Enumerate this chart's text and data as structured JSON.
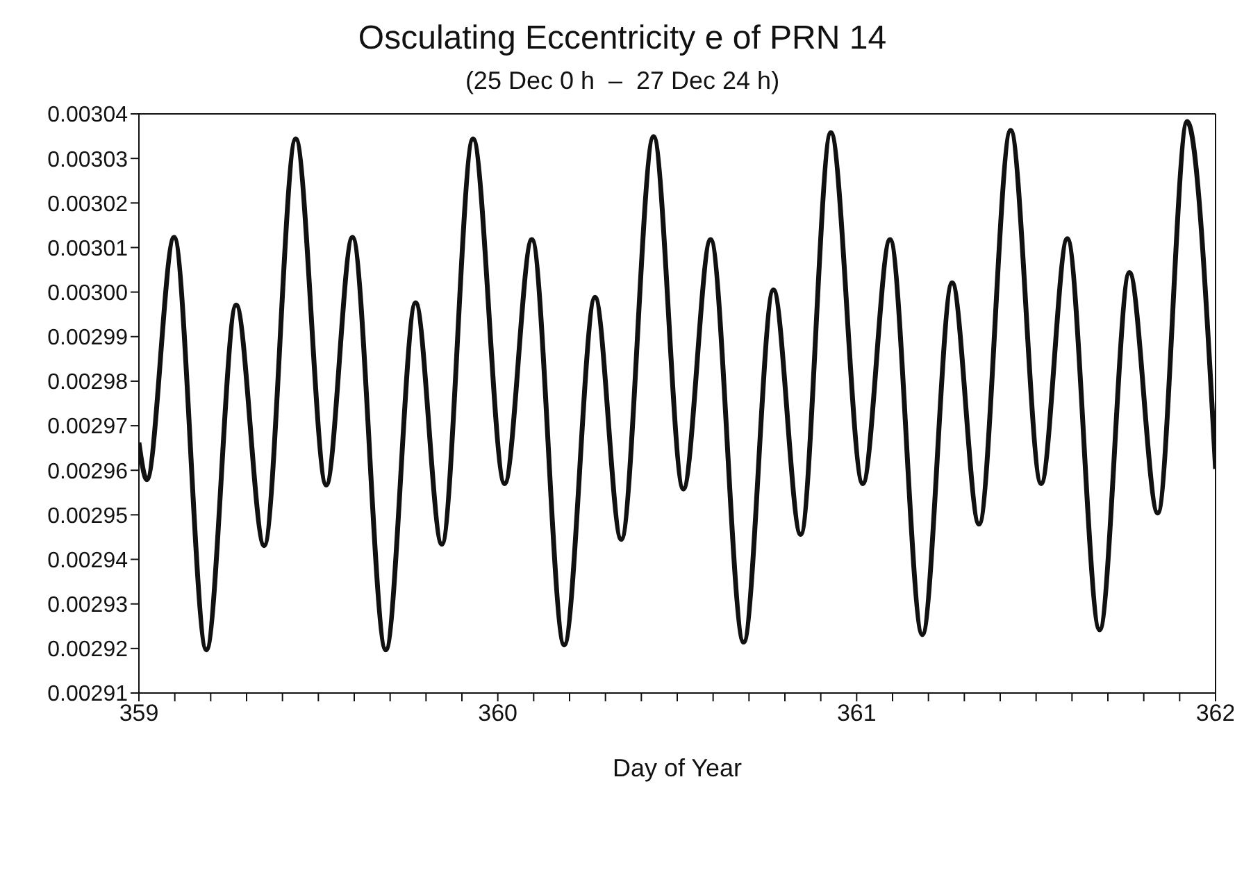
{
  "chart_data": {
    "type": "line",
    "title": "Osculating Eccentricity e of PRN 14",
    "subtitle": "(25 Dec 0 h  –  27 Dec 24 h)",
    "xlabel": "Day of Year",
    "x": [
      359.0,
      359.022,
      359.098,
      359.188,
      359.271,
      359.349,
      359.437,
      359.522,
      359.595,
      359.688,
      359.771,
      359.844,
      359.931,
      360.019,
      360.095,
      360.185,
      360.271,
      360.344,
      360.434,
      360.517,
      360.593,
      360.685,
      360.768,
      360.844,
      360.928,
      361.017,
      361.093,
      361.183,
      361.266,
      361.341,
      361.429,
      361.514,
      361.587,
      361.677,
      361.76,
      361.839,
      361.921,
      362.0
    ],
    "series": [
      {
        "color": "#111111",
        "values": [
          0.0029662,
          0.0029579,
          0.0030123,
          0.0029197,
          0.0029971,
          0.0029431,
          0.0030344,
          0.0029567,
          0.0030123,
          0.0029197,
          0.0029976,
          0.0029434,
          0.0030344,
          0.002957,
          0.0030118,
          0.0029208,
          0.0029988,
          0.0029445,
          0.0030349,
          0.0029558,
          0.0030118,
          0.0029214,
          0.0030005,
          0.0029456,
          0.0030358,
          0.002957,
          0.0030118,
          0.0029231,
          0.0030021,
          0.0029479,
          0.0030363,
          0.002957,
          0.003012,
          0.0029242,
          0.0030044,
          0.0029504,
          0.0030383,
          0.0029603
        ]
      }
    ],
    "xlim": [
      359,
      362
    ],
    "xticks": [
      359,
      {
        "value": 359.1,
        "label": null
      },
      {
        "value": 359.2,
        "label": null
      },
      {
        "value": 359.3,
        "label": null
      },
      {
        "value": 359.4,
        "label": null
      },
      {
        "value": 359.5,
        "label": null
      },
      {
        "value": 359.6,
        "label": null
      },
      {
        "value": 359.7,
        "label": null
      },
      {
        "value": 359.8,
        "label": null
      },
      {
        "value": 359.9,
        "label": null
      },
      360,
      {
        "value": 360.1,
        "label": null
      },
      {
        "value": 360.2,
        "label": null
      },
      {
        "value": 360.3,
        "label": null
      },
      {
        "value": 360.4,
        "label": null
      },
      {
        "value": 360.5,
        "label": null
      },
      {
        "value": 360.6,
        "label": null
      },
      {
        "value": 360.7,
        "label": null
      },
      {
        "value": 360.8,
        "label": null
      },
      {
        "value": 360.9,
        "label": null
      },
      361,
      {
        "value": 361.1,
        "label": null
      },
      {
        "value": 361.2,
        "label": null
      },
      {
        "value": 361.3,
        "label": null
      },
      {
        "value": 361.4,
        "label": null
      },
      {
        "value": 361.5,
        "label": null
      },
      {
        "value": 361.6,
        "label": null
      },
      {
        "value": 361.7,
        "label": null
      },
      {
        "value": 361.8,
        "label": null
      },
      {
        "value": 361.9,
        "label": null
      },
      362
    ],
    "ylim": [
      0.00291,
      0.00304
    ],
    "yticks": [
      0.00291,
      0.00292,
      0.00293,
      0.00294,
      0.00295,
      0.00296,
      0.00297,
      0.00298,
      0.00299,
      {
        "value": 0.003,
        "label": "0.00300"
      },
      0.00301,
      0.00302,
      0.00303,
      0.00304
    ],
    "grid": false,
    "legend": false,
    "marker": "none",
    "line_style": "solid"
  }
}
